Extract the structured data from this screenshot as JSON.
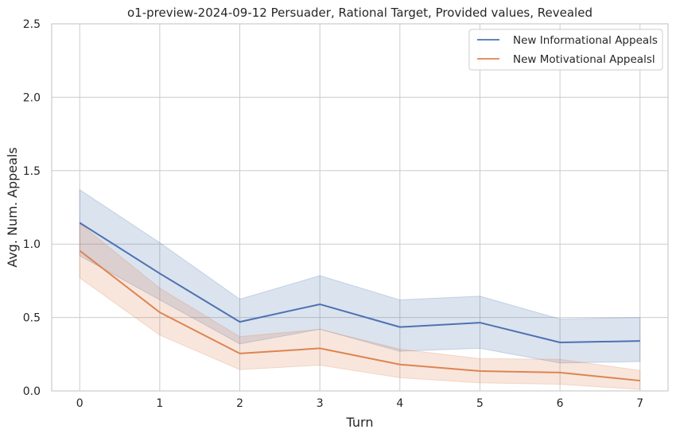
{
  "chart_data": {
    "type": "line",
    "title": "o1-preview-2024-09-12 Persuader, Rational Target, Provided values, Revealed",
    "xlabel": "Turn",
    "ylabel": "Avg. Num. Appeals",
    "x": [
      0,
      1,
      2,
      3,
      4,
      5,
      6,
      7
    ],
    "xticks": [
      "0",
      "1",
      "2",
      "3",
      "4",
      "5",
      "6",
      "7"
    ],
    "yticks": [
      "0.0",
      "0.5",
      "1.0",
      "1.5",
      "2.0",
      "2.5"
    ],
    "xlim": [
      -0.35,
      7.35
    ],
    "ylim": [
      0,
      2.5
    ],
    "grid": true,
    "legend_position": "top-right",
    "series": [
      {
        "name": "New Informational Appeals",
        "color": "#4c72b0",
        "values": [
          1.145,
          0.8,
          0.47,
          0.59,
          0.435,
          0.465,
          0.33,
          0.34
        ],
        "ci_low": [
          0.92,
          0.62,
          0.32,
          0.42,
          0.27,
          0.29,
          0.19,
          0.2
        ],
        "ci_high": [
          1.37,
          1.01,
          0.625,
          0.785,
          0.62,
          0.645,
          0.49,
          0.5
        ]
      },
      {
        "name": "New Motivational Appealsl",
        "color": "#dd8452",
        "values": [
          0.955,
          0.535,
          0.255,
          0.29,
          0.18,
          0.135,
          0.125,
          0.07
        ],
        "ci_low": [
          0.77,
          0.38,
          0.145,
          0.175,
          0.09,
          0.055,
          0.045,
          0.01
        ],
        "ci_high": [
          1.14,
          0.7,
          0.37,
          0.42,
          0.285,
          0.22,
          0.215,
          0.14
        ]
      }
    ]
  }
}
